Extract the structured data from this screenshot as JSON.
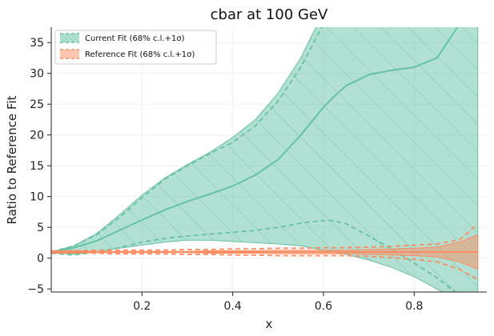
{
  "chart_data": {
    "type": "area",
    "title": "cbar at 100 GeV",
    "xlabel": "x",
    "ylabel": "Ratio to Reference Fit",
    "xlim": [
      0.0,
      0.96
    ],
    "ylim": [
      -5.5,
      37.5
    ],
    "xticks": [
      0.2,
      0.4,
      0.6,
      0.8
    ],
    "xtick_labels": [
      "0.2",
      "0.4",
      "0.6",
      "0.8"
    ],
    "yticks": [
      -5,
      0,
      5,
      10,
      15,
      20,
      25,
      30,
      35
    ],
    "ytick_labels": [
      "−5",
      "0",
      "5",
      "10",
      "15",
      "20",
      "25",
      "30",
      "35"
    ],
    "grid": true,
    "legend_position": "top-left",
    "series": [
      {
        "name": "Current Fit (68% c.l.+1σ)",
        "color": "#66c2a5",
        "hatch": "diagonal",
        "x": [
          0.0,
          0.05,
          0.1,
          0.15,
          0.2,
          0.25,
          0.3,
          0.35,
          0.4,
          0.45,
          0.5,
          0.55,
          0.6,
          0.62,
          0.65,
          0.7,
          0.75,
          0.8,
          0.85,
          0.9,
          0.94
        ],
        "central": [
          1.0,
          1.7,
          2.8,
          4.5,
          6.2,
          7.8,
          9.2,
          10.4,
          11.7,
          13.5,
          16.0,
          20.0,
          24.5,
          26.0,
          28.0,
          29.8,
          30.5,
          31.0,
          32.5,
          38.0,
          45.0
        ],
        "upper": [
          1.0,
          2.0,
          4.0,
          7.0,
          10.2,
          13.0,
          15.2,
          17.2,
          19.6,
          22.5,
          26.8,
          32.5,
          40.0,
          44.0,
          48.0,
          52.0,
          55.0,
          57.0,
          58.0,
          59.0,
          60.0
        ],
        "lower": [
          1.0,
          0.6,
          1.0,
          1.6,
          2.1,
          2.6,
          2.9,
          2.9,
          2.7,
          2.5,
          2.3,
          2.0,
          1.3,
          1.0,
          0.6,
          -0.3,
          -1.5,
          -3.0,
          -5.0,
          -7.0,
          -9.0
        ],
        "dashed_upper": [
          1.0,
          2.0,
          3.8,
          6.6,
          9.8,
          12.8,
          15.0,
          17.0,
          18.8,
          21.5,
          25.5,
          31.0,
          38.0,
          41.0,
          44.0,
          47.0,
          50.0,
          52.0,
          53.0,
          54.0,
          55.0
        ],
        "dashed_lower": [
          0.8,
          0.5,
          1.0,
          1.7,
          2.6,
          3.2,
          3.6,
          3.9,
          4.2,
          4.5,
          5.0,
          5.7,
          6.1,
          6.1,
          5.6,
          3.6,
          1.5,
          -0.8,
          -3.2,
          -6.0,
          -8.0
        ]
      },
      {
        "name": "Reference Fit (68% c.l.+1σ)",
        "color": "#fc8d62",
        "hatch": "none",
        "x": [
          0.0,
          0.05,
          0.1,
          0.15,
          0.2,
          0.25,
          0.3,
          0.35,
          0.4,
          0.45,
          0.5,
          0.55,
          0.6,
          0.62,
          0.65,
          0.7,
          0.75,
          0.8,
          0.85,
          0.9,
          0.94
        ],
        "central": [
          1.0,
          1.0,
          1.0,
          1.0,
          1.0,
          1.0,
          1.0,
          1.0,
          1.0,
          1.0,
          1.0,
          1.0,
          1.0,
          1.0,
          1.0,
          1.0,
          1.0,
          1.0,
          1.0,
          1.0,
          1.0
        ],
        "upper": [
          1.2,
          1.2,
          1.1,
          1.1,
          1.1,
          1.1,
          1.1,
          1.2,
          1.2,
          1.2,
          1.3,
          1.3,
          1.3,
          1.3,
          1.3,
          1.4,
          1.5,
          1.6,
          1.8,
          2.6,
          3.8
        ],
        "lower": [
          0.8,
          0.8,
          0.9,
          0.9,
          0.9,
          0.9,
          0.9,
          0.8,
          0.8,
          0.8,
          0.7,
          0.7,
          0.7,
          0.7,
          0.7,
          0.6,
          0.5,
          0.4,
          0.2,
          -0.6,
          -1.8
        ],
        "dashed_upper": [
          1.1,
          1.2,
          1.3,
          1.3,
          1.3,
          1.3,
          1.4,
          1.4,
          1.5,
          1.5,
          1.6,
          1.6,
          1.7,
          1.7,
          1.7,
          1.8,
          1.9,
          2.1,
          2.3,
          3.0,
          5.5
        ],
        "dashed_lower": [
          0.9,
          0.9,
          0.8,
          0.7,
          0.7,
          0.7,
          0.6,
          0.6,
          0.5,
          0.5,
          0.4,
          0.4,
          0.4,
          0.4,
          0.4,
          0.3,
          0.1,
          -0.2,
          -0.6,
          -1.8,
          -3.5
        ]
      }
    ]
  }
}
